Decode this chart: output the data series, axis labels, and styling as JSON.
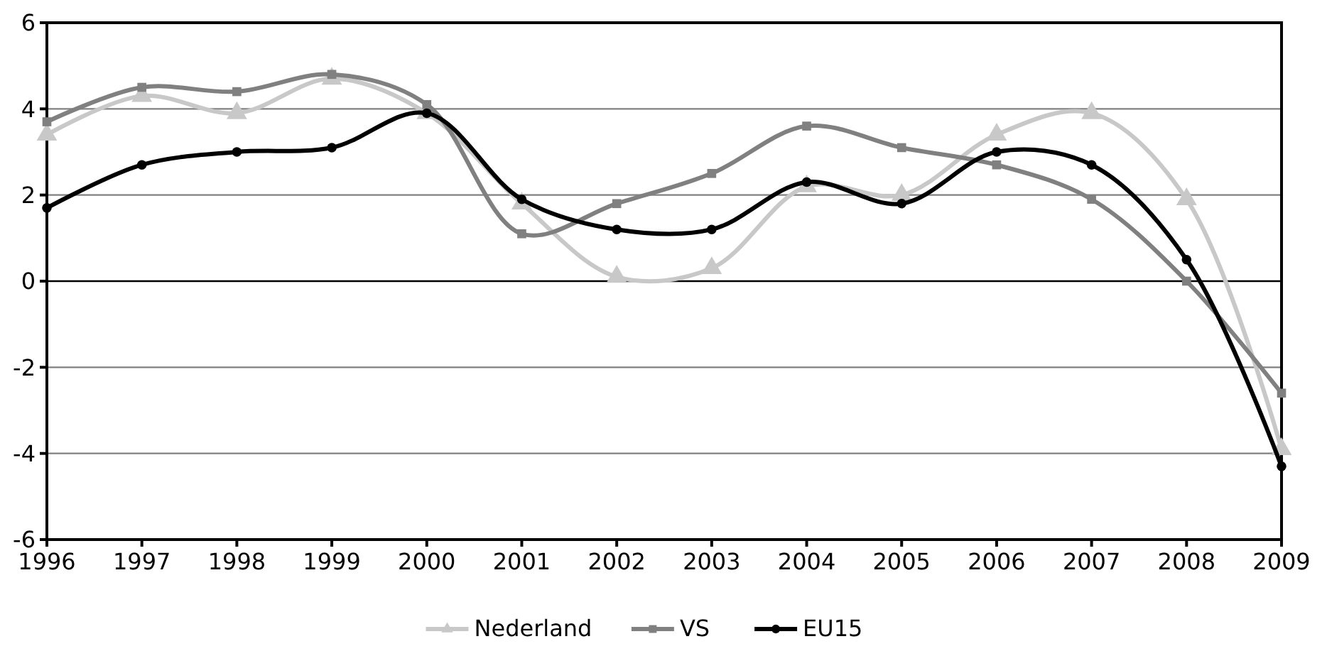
{
  "chart_data": {
    "type": "line",
    "x": [
      1996,
      1997,
      1998,
      1999,
      2000,
      2001,
      2002,
      2003,
      2004,
      2005,
      2006,
      2007,
      2008,
      2009
    ],
    "xlim": [
      1996,
      2009
    ],
    "xticks": [
      1996,
      1997,
      1998,
      1999,
      2000,
      2001,
      2002,
      2003,
      2004,
      2005,
      2006,
      2007,
      2008,
      2009
    ],
    "ylim": [
      -6,
      6
    ],
    "yticks": [
      -6,
      -4,
      -2,
      0,
      2,
      4,
      6
    ],
    "grid": "y",
    "legend": "bottom",
    "series": [
      {
        "name": "Nederland",
        "color": "#c8c8c8",
        "marker": "triangle",
        "values": [
          3.4,
          4.3,
          3.9,
          4.7,
          3.9,
          1.8,
          0.1,
          0.3,
          2.2,
          2.0,
          3.4,
          3.9,
          1.9,
          -3.9
        ]
      },
      {
        "name": "VS",
        "color": "#808080",
        "marker": "square",
        "values": [
          3.7,
          4.5,
          4.4,
          4.8,
          4.1,
          1.1,
          1.8,
          2.5,
          3.6,
          3.1,
          2.7,
          1.9,
          0.0,
          -2.6
        ]
      },
      {
        "name": "EU15",
        "color": "#000000",
        "marker": "circle",
        "values": [
          1.7,
          2.7,
          3.0,
          3.1,
          3.9,
          1.9,
          1.2,
          1.2,
          2.3,
          1.8,
          3.0,
          2.7,
          0.5,
          -4.3
        ]
      }
    ]
  }
}
